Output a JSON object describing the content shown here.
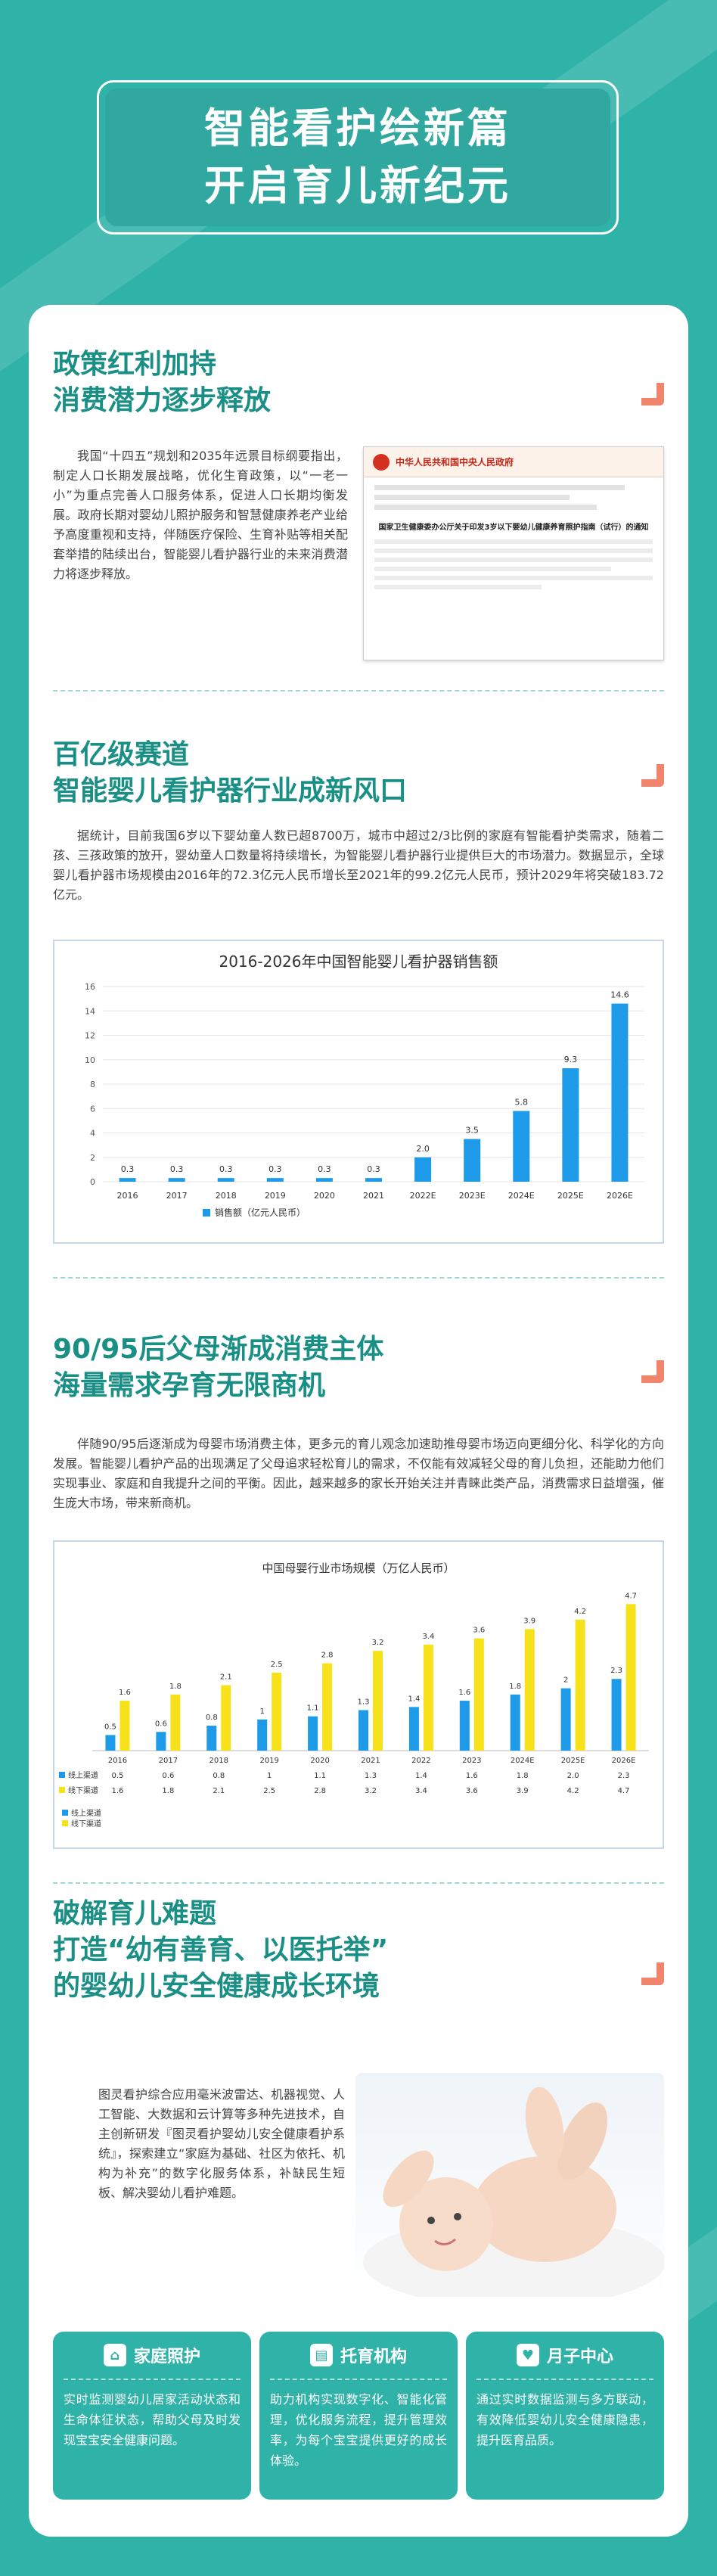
{
  "header": {
    "line1": "智能看护绘新篇",
    "line2": "开启育儿新纪元"
  },
  "section1": {
    "title1": "政策红利加持",
    "title2": "消费潜力逐步释放",
    "para": "我国“十四五”规划和2035年远景目标纲要指出，制定人口长期发展战略，优化生育政策，以“一老一小”为重点完善人口服务体系，促进人口长期均衡发展。政府长期对婴幼儿照护服务和智慧健康养老产业给予高度重视和支持，伴随医疗保险、生育补贴等相关配套举措的陆续出台，智能婴儿看护器行业的未来消费潜力将逐步释放。",
    "doc_header": "中华人民共和国中央人民政府",
    "doc_title": "国家卫生健康委办公厅关于印发3岁以下婴幼儿健康养育照护指南（试行）的通知"
  },
  "section2": {
    "title1": "百亿级赛道",
    "title2": "智能婴儿看护器行业成新风口",
    "para": "据统计，目前我国6岁以下婴幼童人数已超8700万，城市中超过2/3比例的家庭有智能看护类需求，随着二孩、三孩政策的放开，婴幼童人口数量将持续增长，为智能婴儿看护器行业提供巨大的市场潜力。数据显示，全球婴儿看护器市场规模由2016年的72.3亿元人民币增长至2021年的99.2亿元人民币，预计2029年将突破183.72亿元。"
  },
  "section3": {
    "title1": "90/95后父母渐成消费主体",
    "title2": "海量需求孕育无限商机",
    "para": "伴随90/95后逐渐成为母婴市场消费主体，更多元的育儿观念加速助推母婴市场迈向更细分化、科学化的方向发展。智能婴儿看护产品的出现满足了父母追求轻松育儿的需求，不仅能有效减轻父母的育儿负担，还能助力他们实现事业、家庭和自我提升之间的平衡。因此，越来越多的家长开始关注并青睐此类产品，消费需求日益增强，催生庞大市场，带来新商机。"
  },
  "section4": {
    "title1": "破解育儿难题",
    "title2": "打造“幼有善育、以医托举”",
    "title3": "的婴幼儿安全健康成长环境",
    "para": "图灵看护综合应用毫米波雷达、机器视觉、人工智能、大数据和云计算等多种先进技术，自主创新研发『图灵看护婴幼儿安全健康看护系统』，探索建立“家庭为基础、社区为依托、机构为补充”的数字化服务体系，补缺民生短板、解决婴幼儿看护难题。"
  },
  "features": [
    {
      "title": "家庭照护",
      "icon": "home-icon",
      "text": "实时监测婴幼儿居家活动状态和生命体征状态，帮助父母及时发现宝宝安全健康问题。"
    },
    {
      "title": "托育机构",
      "icon": "document-icon",
      "text": "助力机构实现数字化、智能化管理，优化服务流程，提升管理效率，为每个宝宝提供更好的成长体验。"
    },
    {
      "title": "月子中心",
      "icon": "heart-icon",
      "text": "通过实时数据监测与多方联动，有效降低婴幼儿安全健康隐患，提升医育品质。"
    }
  ],
  "chart_data": [
    {
      "type": "bar",
      "title": "2016-2026年中国智能婴儿看护器销售额",
      "categories": [
        "2016",
        "2017",
        "2018",
        "2019",
        "2020",
        "2021",
        "2022E",
        "2023E",
        "2024E",
        "2025E",
        "2026E"
      ],
      "series": [
        {
          "name": "销售额（亿元人民币）",
          "values": [
            0.3,
            0.3,
            0.3,
            0.3,
            0.3,
            0.3,
            2.0,
            3.5,
            5.8,
            9.3,
            14.6
          ]
        }
      ],
      "ylim": [
        0,
        16
      ],
      "yticks": [
        0,
        2,
        4,
        6,
        8,
        10,
        12,
        14,
        16
      ],
      "colors": [
        "#1e9be8"
      ],
      "legend": "bottom-left"
    },
    {
      "type": "bar",
      "title": "中国母婴行业市场规模（万亿人民币）",
      "categories": [
        "2016",
        "2017",
        "2018",
        "2019",
        "2020",
        "2021",
        "2022",
        "2023",
        "2024E",
        "2025E",
        "2026E"
      ],
      "series": [
        {
          "name": "线上渠道",
          "values": [
            0.5,
            0.6,
            0.8,
            1,
            1.1,
            1.3,
            1.4,
            1.6,
            1.8,
            2.0,
            2.3
          ]
        },
        {
          "name": "线下渠道",
          "values": [
            1.6,
            1.8,
            2.1,
            2.5,
            2.8,
            3.2,
            3.4,
            3.6,
            3.9,
            4.2,
            4.7
          ]
        }
      ],
      "table_rows": [
        {
          "name": "线上渠道",
          "values": [
            "0.5",
            "0.6",
            "0.8",
            "1",
            "1.1",
            "1.3",
            "1.4",
            "1.6",
            "1.8",
            "2.0",
            "2.3"
          ]
        },
        {
          "name": "线下渠道",
          "values": [
            "1.6",
            "1.8",
            "2.1",
            "2.5",
            "2.8",
            "3.2",
            "3.4",
            "3.6",
            "3.9",
            "4.2",
            "4.7"
          ]
        }
      ],
      "ylim": [
        0,
        5
      ],
      "colors": [
        "#1e9be8",
        "#f7e11a"
      ],
      "legend": "bottom-left"
    }
  ]
}
